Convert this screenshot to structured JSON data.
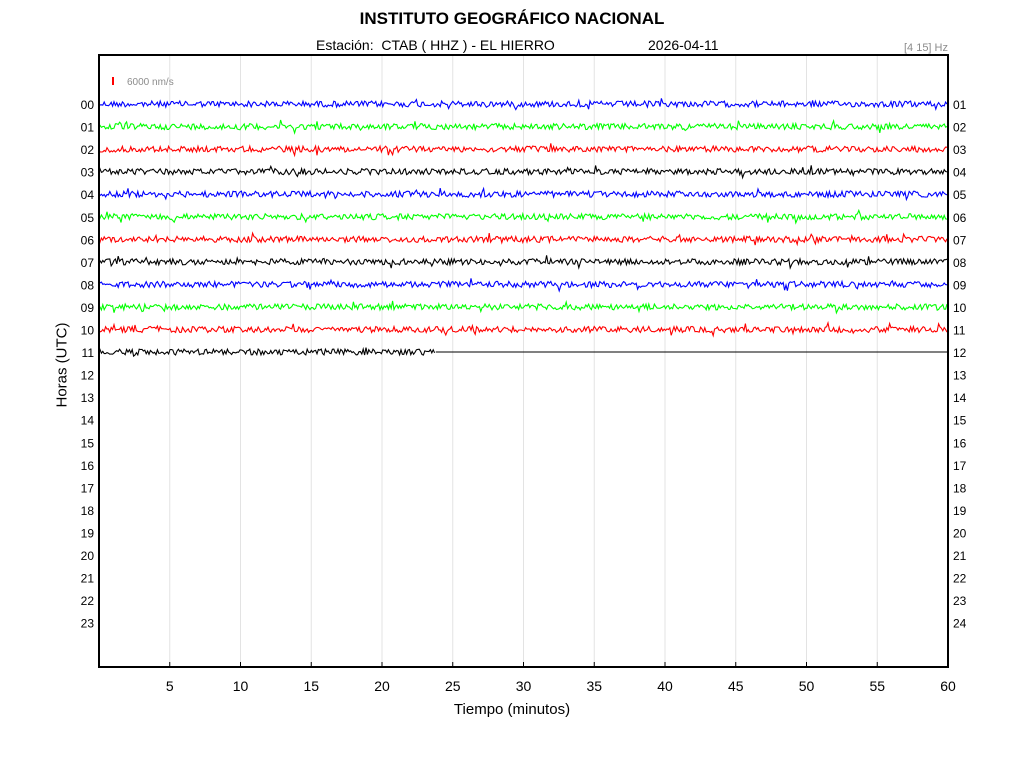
{
  "header": {
    "title": "INSTITUTO GEOGRÁFICO NACIONAL",
    "station_line": "Estación:  CTAB ( HHZ ) - EL HIERRO",
    "date": "2026-04-11",
    "band": "[4 15] Hz"
  },
  "chart_data": {
    "type": "line",
    "title": "INSTITUTO GEOGRÁFICO NACIONAL",
    "xlabel": "Tiempo (minutos)",
    "ylabel": "Horas (UTC)",
    "xlim": [
      0,
      60
    ],
    "x_ticks": [
      5,
      10,
      15,
      20,
      25,
      30,
      35,
      40,
      45,
      50,
      55,
      60
    ],
    "left_hour_labels": [
      "00",
      "01",
      "02",
      "03",
      "04",
      "05",
      "06",
      "07",
      "08",
      "09",
      "10",
      "11",
      "12",
      "13",
      "14",
      "15",
      "16",
      "17",
      "18",
      "19",
      "20",
      "21",
      "22",
      "23"
    ],
    "right_hour_labels": [
      "01",
      "02",
      "03",
      "04",
      "05",
      "06",
      "07",
      "08",
      "09",
      "10",
      "11",
      "12",
      "13",
      "14",
      "15",
      "16",
      "17",
      "18",
      "19",
      "20",
      "21",
      "22",
      "23",
      "24"
    ],
    "grid": "vertical",
    "scale_bar": {
      "label": "6000 nm/s",
      "color": "#ff0000"
    },
    "colors": [
      "#0000ff",
      "#00ff00",
      "#ff0000",
      "#000000"
    ],
    "series": [
      {
        "hour": "00",
        "color": "#0000ff",
        "end_minute": 60
      },
      {
        "hour": "01",
        "color": "#00ff00",
        "end_minute": 60
      },
      {
        "hour": "02",
        "color": "#ff0000",
        "end_minute": 60
      },
      {
        "hour": "03",
        "color": "#000000",
        "end_minute": 60
      },
      {
        "hour": "04",
        "color": "#0000ff",
        "end_minute": 60
      },
      {
        "hour": "05",
        "color": "#00ff00",
        "end_minute": 60
      },
      {
        "hour": "06",
        "color": "#ff0000",
        "end_minute": 60
      },
      {
        "hour": "07",
        "color": "#000000",
        "end_minute": 60
      },
      {
        "hour": "08",
        "color": "#0000ff",
        "end_minute": 60
      },
      {
        "hour": "09",
        "color": "#00ff00",
        "end_minute": 60
      },
      {
        "hour": "10",
        "color": "#ff0000",
        "end_minute": 60
      },
      {
        "hour": "11",
        "color": "#000000",
        "end_minute": 23.8
      }
    ]
  }
}
